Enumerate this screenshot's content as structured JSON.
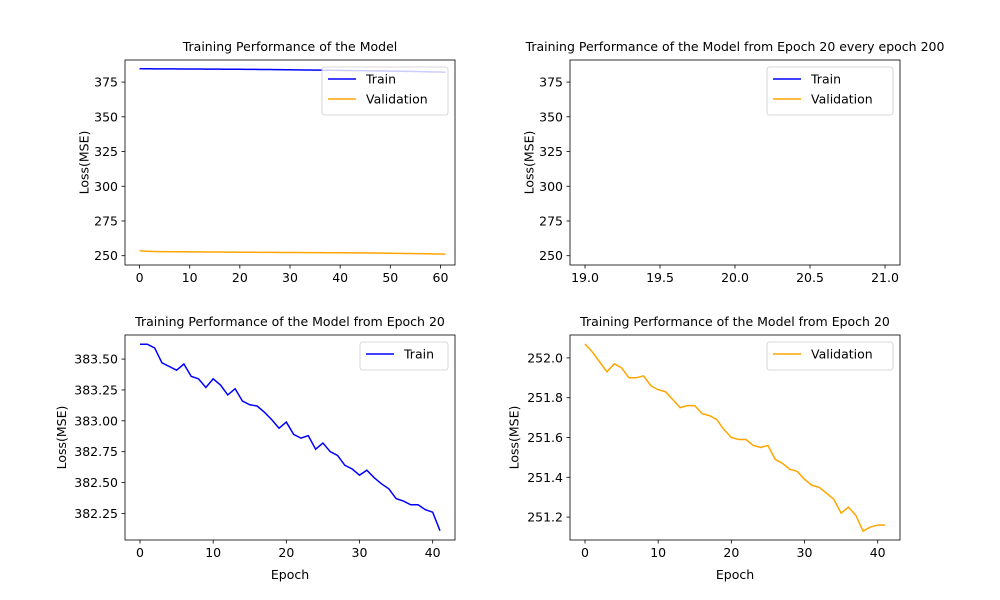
{
  "chart_data": [
    {
      "type": "line",
      "title": "Training Performance of the Model",
      "xlabel": "",
      "ylabel": "Loss(MSE)",
      "xlim": [
        -2.9,
        62.9
      ],
      "ylim": [
        243.3,
        390.9
      ],
      "xticks": [
        0,
        10,
        20,
        30,
        40,
        50,
        60
      ],
      "yticks": [
        250,
        275,
        300,
        325,
        350,
        375
      ],
      "legend": "upper right",
      "series": [
        {
          "name": "Train",
          "color": "#0000ff",
          "x_start": 0,
          "x_step": 1,
          "values": [
            384.6,
            384.6,
            384.58,
            384.55,
            384.53,
            384.5,
            384.52,
            384.48,
            384.45,
            384.43,
            384.41,
            384.43,
            384.38,
            384.35,
            384.33,
            384.3,
            384.3,
            384.28,
            384.25,
            384.22,
            384.2,
            384.18,
            384.16,
            384.13,
            384.1,
            384.08,
            384.04,
            383.98,
            383.93,
            383.88,
            383.84,
            383.8,
            383.77,
            383.73,
            383.7,
            383.63,
            383.58,
            383.53,
            383.48,
            383.45,
            383.41,
            383.35,
            383.3,
            383.26,
            383.21,
            383.16,
            383.11,
            383.06,
            383.01,
            382.96,
            382.92,
            382.86,
            382.8,
            382.73,
            382.67,
            382.6,
            382.53,
            382.46,
            382.37,
            382.3,
            382.25,
            382.11
          ]
        },
        {
          "name": "Validation",
          "color": "#ffa500",
          "x_start": 0,
          "x_step": 1,
          "values": [
            253.6,
            253.3,
            253.1,
            253.0,
            252.95,
            252.9,
            252.87,
            252.85,
            252.82,
            252.8,
            252.78,
            252.75,
            252.73,
            252.7,
            252.68,
            252.65,
            252.62,
            252.6,
            252.58,
            252.55,
            252.52,
            252.5,
            252.48,
            252.45,
            252.43,
            252.4,
            252.38,
            252.36,
            252.34,
            252.32,
            252.3,
            252.28,
            252.26,
            252.24,
            252.22,
            252.2,
            252.18,
            252.16,
            252.14,
            252.12,
            252.1,
            252.08,
            252.06,
            252.04,
            252.02,
            252.0,
            251.95,
            251.9,
            251.85,
            251.8,
            251.75,
            251.7,
            251.65,
            251.6,
            251.55,
            251.5,
            251.45,
            251.4,
            251.35,
            251.25,
            251.18,
            251.16
          ]
        }
      ]
    },
    {
      "type": "line",
      "title": "Training Performance of the Model from Epoch 20 every epoch 200",
      "xlabel": "",
      "ylabel": "Loss(MSE)",
      "xlim": [
        18.9,
        21.1
      ],
      "ylim": [
        243.3,
        390.9
      ],
      "xticks": [
        19.0,
        19.5,
        20.0,
        20.5,
        21.0
      ],
      "xtick_labels": [
        "19.0",
        "19.5",
        "20.0",
        "20.5",
        "21.0"
      ],
      "yticks": [
        250,
        275,
        300,
        325,
        350,
        375
      ],
      "legend": "upper right",
      "series": [
        {
          "name": "Train",
          "color": "#0000ff",
          "x_start": 20,
          "x_step": 200,
          "values": []
        },
        {
          "name": "Validation",
          "color": "#ffa500",
          "x_start": 20,
          "x_step": 200,
          "values": []
        }
      ]
    },
    {
      "type": "line",
      "title": "Training Performance of the Model from Epoch 20",
      "xlabel": "Epoch",
      "ylabel": "Loss(MSE)",
      "xlim": [
        -2.05,
        43.05
      ],
      "ylim": [
        382.035,
        383.695
      ],
      "xticks": [
        0,
        10,
        20,
        30,
        40
      ],
      "yticks": [
        382.25,
        382.5,
        382.75,
        383.0,
        383.25,
        383.5
      ],
      "ytick_labels": [
        "382.25",
        "382.50",
        "382.75",
        "383.00",
        "383.25",
        "383.50"
      ],
      "legend": "upper right",
      "series": [
        {
          "name": "Train",
          "color": "#0000ff",
          "x_start": 0,
          "x_step": 1,
          "values": [
            383.62,
            383.62,
            383.59,
            383.47,
            383.44,
            383.41,
            383.46,
            383.36,
            383.34,
            383.27,
            383.34,
            383.29,
            383.21,
            383.26,
            383.16,
            383.13,
            383.12,
            383.07,
            383.01,
            382.94,
            382.99,
            382.89,
            382.86,
            382.88,
            382.77,
            382.82,
            382.75,
            382.72,
            382.64,
            382.61,
            382.56,
            382.6,
            382.54,
            382.49,
            382.45,
            382.37,
            382.35,
            382.32,
            382.32,
            382.28,
            382.26,
            382.11
          ]
        }
      ]
    },
    {
      "type": "line",
      "title": "Training Performance of the Model from Epoch 20",
      "xlabel": "Epoch",
      "ylabel": "Loss(MSE)",
      "xlim": [
        -2.05,
        43.05
      ],
      "ylim": [
        251.085,
        252.115
      ],
      "xticks": [
        0,
        10,
        20,
        30,
        40
      ],
      "yticks": [
        251.2,
        251.4,
        251.6,
        251.8,
        252.0
      ],
      "ytick_labels": [
        "251.2",
        "251.4",
        "251.6",
        "251.8",
        "252.0"
      ],
      "legend": "upper right",
      "series": [
        {
          "name": "Validation",
          "color": "#ffa500",
          "x_start": 0,
          "x_step": 1,
          "values": [
            252.07,
            252.03,
            251.98,
            251.93,
            251.97,
            251.95,
            251.9,
            251.9,
            251.91,
            251.86,
            251.84,
            251.83,
            251.79,
            251.75,
            251.76,
            251.76,
            251.72,
            251.71,
            251.69,
            251.64,
            251.6,
            251.59,
            251.59,
            251.56,
            251.55,
            251.56,
            251.49,
            251.47,
            251.44,
            251.43,
            251.39,
            251.36,
            251.35,
            251.32,
            251.29,
            251.22,
            251.25,
            251.21,
            251.13,
            251.15,
            251.16,
            251.16
          ]
        }
      ]
    }
  ]
}
